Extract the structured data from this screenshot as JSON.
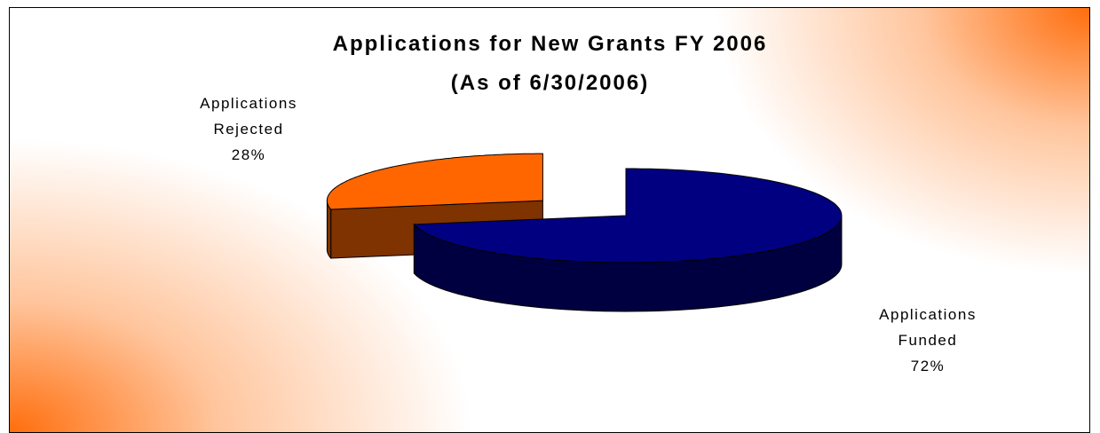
{
  "chart_data": {
    "type": "pie3d",
    "title": "Applications for New Grants FY 2006",
    "subtitle": "(As of 6/30/2006)",
    "categories": [
      "Applications Rejected",
      "Applications Funded"
    ],
    "values": [
      28,
      72
    ],
    "value_labels": [
      "28%",
      "72%"
    ],
    "colors": [
      "#ff6600",
      "#000080"
    ],
    "side_colors": [
      "#7f3300",
      "#000040"
    ],
    "explode": [
      0.5,
      0
    ]
  }
}
